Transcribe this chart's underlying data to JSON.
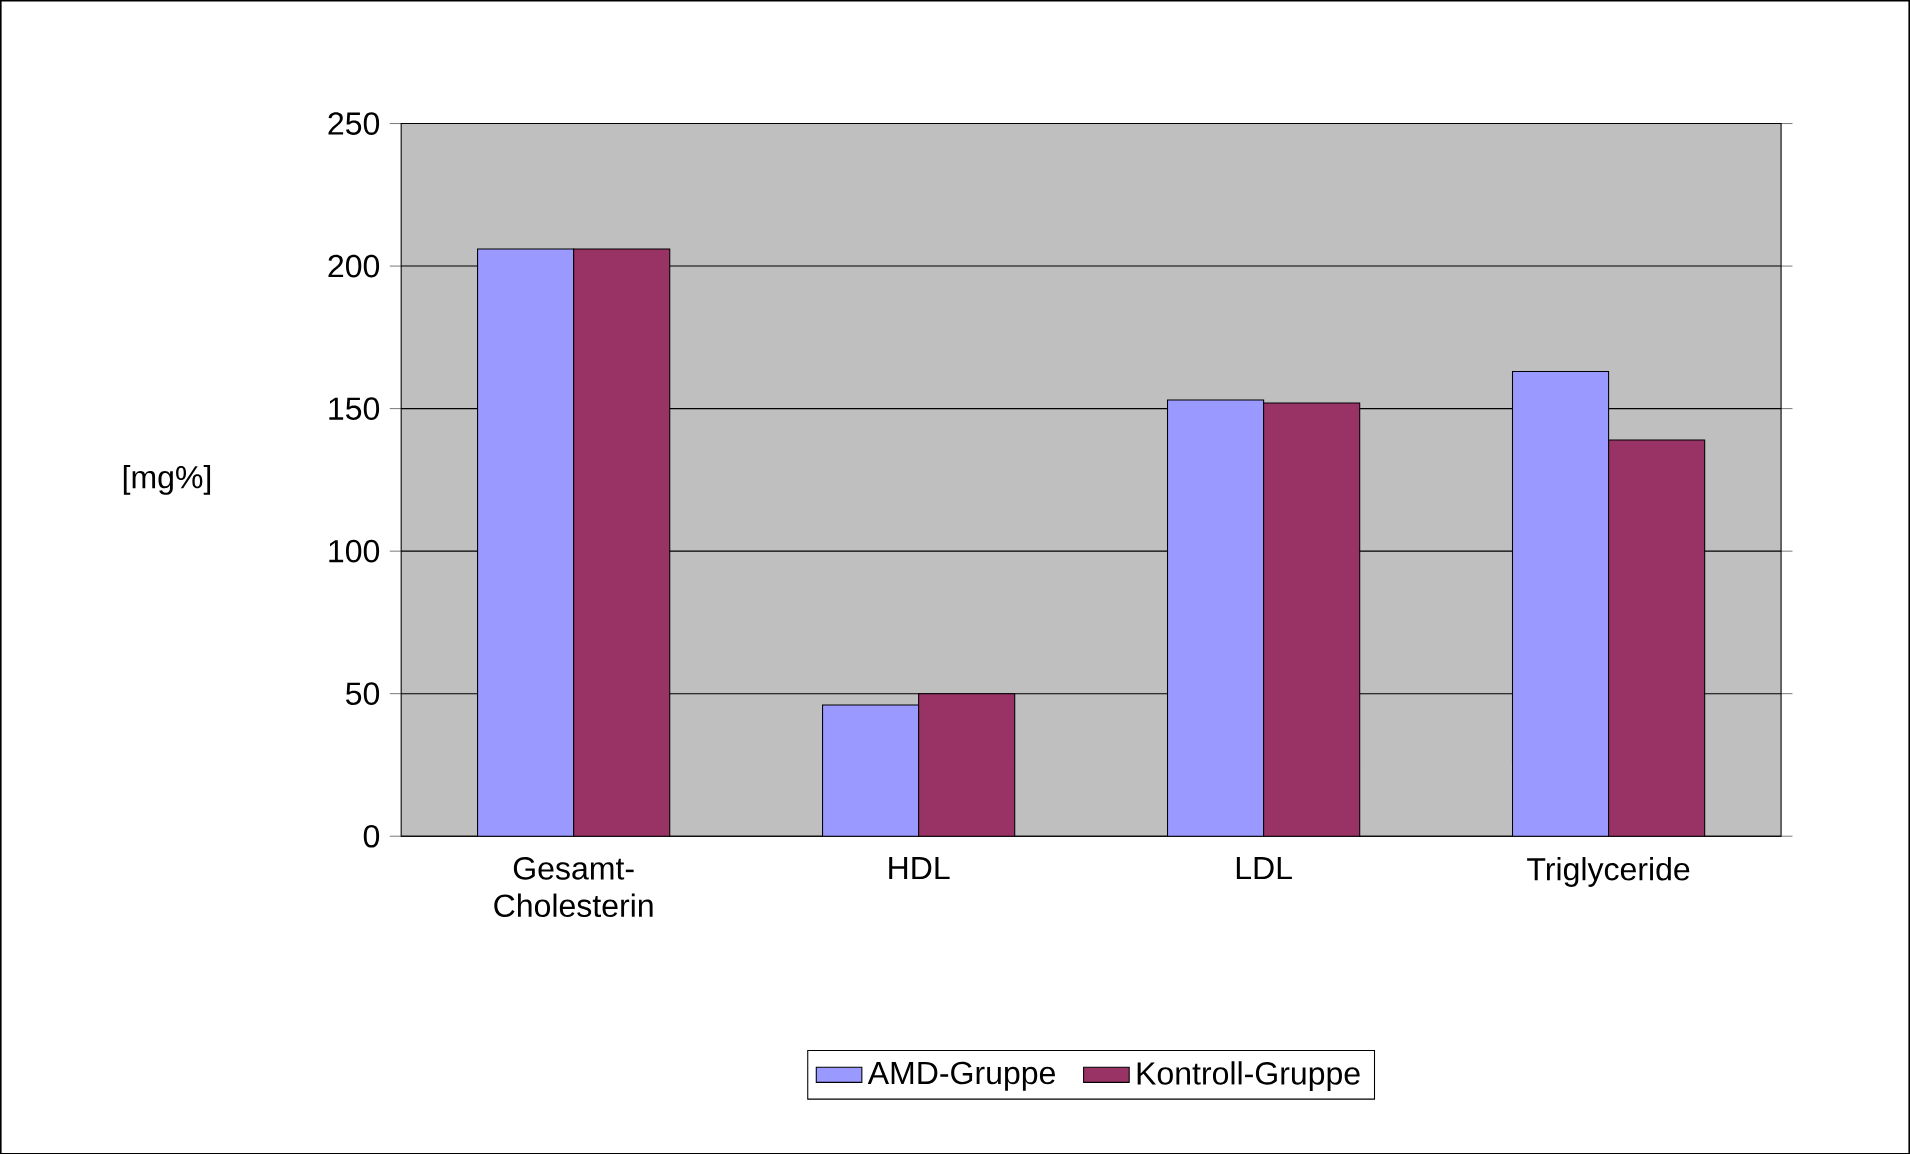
{
  "chart_data": {
    "type": "bar",
    "ylabel": "[mg%]",
    "categories": [
      "Gesamt-Cholesterin",
      "HDL",
      "LDL",
      "Triglyceride"
    ],
    "series": [
      {
        "name": "AMD-Gruppe",
        "color": "#9999ff",
        "values": [
          206,
          46,
          153,
          163
        ]
      },
      {
        "name": "Kontroll-Gruppe",
        "color": "#993366",
        "values": [
          206,
          50,
          152,
          139
        ]
      }
    ],
    "ylim": [
      0,
      250
    ],
    "yticks": [
      0,
      50,
      100,
      150,
      200,
      250
    ],
    "grid": "y",
    "legend": "bottom"
  }
}
